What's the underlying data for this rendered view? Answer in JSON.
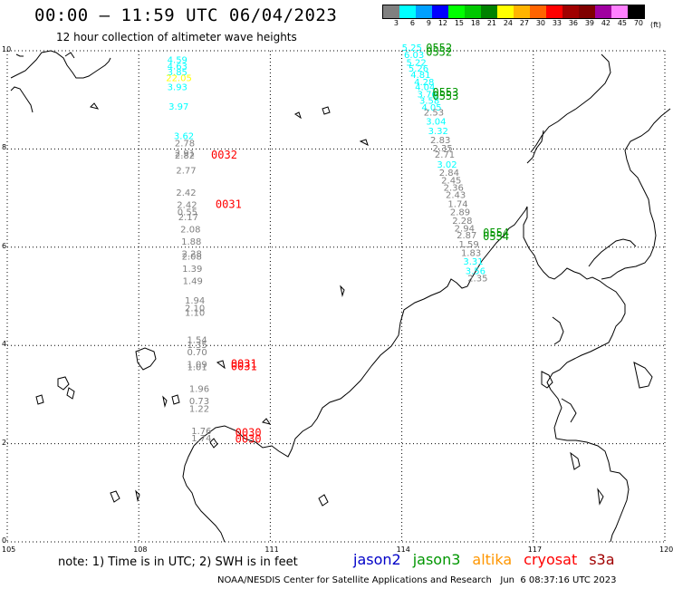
{
  "header": {
    "title": "00:00 – 11:59 UTC 06/04/2023",
    "subtitle": "12 hour collection of altimeter wave heights"
  },
  "legend": {
    "labels": [
      "3",
      "6",
      "9",
      "12",
      "15",
      "18",
      "21",
      "24",
      "27",
      "30",
      "33",
      "36",
      "39",
      "42",
      "45",
      "70"
    ],
    "unit": "(ft)",
    "colors": [
      "#808080",
      "#00ffff",
      "#00a0ff",
      "#0000ff",
      "#00ff00",
      "#00c800",
      "#008200",
      "#ffff00",
      "#ffb400",
      "#ff6400",
      "#ff0000",
      "#a00000",
      "#800000",
      "#a000a0",
      "#ff80ff",
      "#000000"
    ]
  },
  "footer": {
    "note": "note: 1) Time is in UTC; 2) SWH is in feet",
    "satellites": [
      {
        "name": "jason2",
        "color": "#0000c8"
      },
      {
        "name": "jason3",
        "color": "#009600"
      },
      {
        "name": "altika",
        "color": "#ff9600"
      },
      {
        "name": "cryosat",
        "color": "#ff0000"
      },
      {
        "name": "s3a",
        "color": "#a00000"
      }
    ],
    "credit": "NOAA/NESDIS Center for Satellite Applications and Research   Jun  6 08:37:16 UTC 2023"
  },
  "axes": {
    "lon_ticks": [
      "105",
      "108",
      "111",
      "114",
      "117",
      "120"
    ],
    "lat_ticks": [
      "0",
      "2",
      "4",
      "6",
      "8",
      "10"
    ]
  },
  "chart_data": {
    "type": "scatter",
    "description_units": "lon/lat degrees; value = significant wave height (ft)",
    "xlim": [
      105,
      120
    ],
    "ylim": [
      0,
      10
    ],
    "grid": true,
    "tracks": [
      {
        "points": [
          {
            "lon": 108.65,
            "lat": 9.75,
            "v": "4.59",
            "c": "#00ffff"
          },
          {
            "lon": 108.65,
            "lat": 9.62,
            "v": "4.63",
            "c": "#00ffff"
          },
          {
            "lon": 108.65,
            "lat": 9.5,
            "v": "3.85",
            "c": "#00ffff"
          },
          {
            "lon": 108.62,
            "lat": 9.38,
            "v": "22.05",
            "c": "#ffff00"
          },
          {
            "lon": 108.65,
            "lat": 9.2,
            "v": "3.93",
            "c": "#00ffff"
          },
          {
            "lon": 108.68,
            "lat": 8.8,
            "v": "3.97",
            "c": "#00ffff"
          },
          {
            "lon": 108.8,
            "lat": 8.2,
            "v": "3.62",
            "c": "#00ffff"
          },
          {
            "lon": 108.82,
            "lat": 8.05,
            "v": "2.78",
            "c": "#808080"
          },
          {
            "lon": 108.82,
            "lat": 7.85,
            "v": "2.91",
            "c": "#808080"
          },
          {
            "lon": 108.82,
            "lat": 7.8,
            "v": "2.82",
            "c": "#808080"
          },
          {
            "lon": 108.85,
            "lat": 7.5,
            "v": "2.77",
            "c": "#808080"
          },
          {
            "lon": 108.85,
            "lat": 7.05,
            "v": "2.42",
            "c": "#808080"
          },
          {
            "lon": 108.87,
            "lat": 6.8,
            "v": "2.42",
            "c": "#808080"
          },
          {
            "lon": 108.88,
            "lat": 6.65,
            "v": "0.55",
            "c": "#808080"
          },
          {
            "lon": 108.9,
            "lat": 6.55,
            "v": "2.17",
            "c": "#808080"
          },
          {
            "lon": 108.95,
            "lat": 6.3,
            "v": "2.08",
            "c": "#808080"
          },
          {
            "lon": 108.97,
            "lat": 6.05,
            "v": "1.88",
            "c": "#808080"
          },
          {
            "lon": 108.98,
            "lat": 5.8,
            "v": "2.28",
            "c": "#808080"
          },
          {
            "lon": 108.98,
            "lat": 5.75,
            "v": "2.08",
            "c": "#808080"
          },
          {
            "lon": 108.99,
            "lat": 5.5,
            "v": "1.39",
            "c": "#808080"
          },
          {
            "lon": 109.0,
            "lat": 5.25,
            "v": "1.49",
            "c": "#808080"
          },
          {
            "lon": 109.05,
            "lat": 4.85,
            "v": "1.94",
            "c": "#808080"
          },
          {
            "lon": 109.05,
            "lat": 4.7,
            "v": "2.10",
            "c": "#808080"
          },
          {
            "lon": 109.05,
            "lat": 4.6,
            "v": "1.10",
            "c": "#808080"
          },
          {
            "lon": 109.1,
            "lat": 4.05,
            "v": "1.54",
            "c": "#808080"
          },
          {
            "lon": 109.1,
            "lat": 3.95,
            "v": "1.35",
            "c": "#808080"
          },
          {
            "lon": 109.1,
            "lat": 3.8,
            "v": "0.70",
            "c": "#808080"
          },
          {
            "lon": 109.1,
            "lat": 3.55,
            "v": "1.09",
            "c": "#808080"
          },
          {
            "lon": 109.1,
            "lat": 3.5,
            "v": "1.01",
            "c": "#808080"
          },
          {
            "lon": 109.15,
            "lat": 3.05,
            "v": "1.96",
            "c": "#808080"
          },
          {
            "lon": 109.15,
            "lat": 2.8,
            "v": "0.73",
            "c": "#808080"
          },
          {
            "lon": 109.15,
            "lat": 2.65,
            "v": "1.22",
            "c": "#808080"
          },
          {
            "lon": 109.2,
            "lat": 2.2,
            "v": "1.76",
            "c": "#808080"
          },
          {
            "lon": 109.2,
            "lat": 2.05,
            "v": "1.74",
            "c": "#808080"
          }
        ],
        "time_labels": [
          {
            "lon": 109.65,
            "lat": 7.8,
            "t": "0032",
            "c": "#ff0000"
          },
          {
            "lon": 109.75,
            "lat": 6.8,
            "t": "0031",
            "c": "#ff0000"
          },
          {
            "lon": 110.1,
            "lat": 3.55,
            "t": "0031",
            "c": "#ff0000"
          },
          {
            "lon": 110.1,
            "lat": 3.5,
            "t": "0031",
            "c": "#ff0000"
          },
          {
            "lon": 110.2,
            "lat": 2.15,
            "t": "0030",
            "c": "#ff0000"
          },
          {
            "lon": 110.2,
            "lat": 2.02,
            "t": "0030",
            "c": "#ff0000"
          }
        ]
      },
      {
        "points": [
          {
            "lon": 114.0,
            "lat": 10.0,
            "v": "5.25",
            "c": "#00ffff"
          },
          {
            "lon": 114.05,
            "lat": 9.85,
            "v": "6.03",
            "c": "#00ffff"
          },
          {
            "lon": 114.1,
            "lat": 9.7,
            "v": "5.22",
            "c": "#00ffff"
          },
          {
            "lon": 114.15,
            "lat": 9.58,
            "v": "5.26",
            "c": "#00ffff"
          },
          {
            "lon": 114.2,
            "lat": 9.45,
            "v": "4.81",
            "c": "#00ffff"
          },
          {
            "lon": 114.28,
            "lat": 9.3,
            "v": "4.28",
            "c": "#00ffff"
          },
          {
            "lon": 114.3,
            "lat": 9.2,
            "v": "4.04",
            "c": "#00ffff"
          },
          {
            "lon": 114.35,
            "lat": 9.05,
            "v": "3.76",
            "c": "#00ffff"
          },
          {
            "lon": 114.4,
            "lat": 8.92,
            "v": "3.58",
            "c": "#00ffff"
          },
          {
            "lon": 114.45,
            "lat": 8.78,
            "v": "4.05",
            "c": "#00ffff"
          },
          {
            "lon": 114.5,
            "lat": 8.68,
            "v": "2.53",
            "c": "#808080"
          },
          {
            "lon": 114.55,
            "lat": 8.5,
            "v": "3.04",
            "c": "#00ffff"
          },
          {
            "lon": 114.6,
            "lat": 8.3,
            "v": "3.32",
            "c": "#00ffff"
          },
          {
            "lon": 114.65,
            "lat": 8.12,
            "v": "2.83",
            "c": "#808080"
          },
          {
            "lon": 114.7,
            "lat": 7.95,
            "v": "2.35",
            "c": "#808080"
          },
          {
            "lon": 114.75,
            "lat": 7.82,
            "v": "2.71",
            "c": "#808080"
          },
          {
            "lon": 114.8,
            "lat": 7.62,
            "v": "3.02",
            "c": "#00ffff"
          },
          {
            "lon": 114.85,
            "lat": 7.45,
            "v": "2.84",
            "c": "#808080"
          },
          {
            "lon": 114.9,
            "lat": 7.3,
            "v": "2.45",
            "c": "#808080"
          },
          {
            "lon": 114.95,
            "lat": 7.15,
            "v": "2.36",
            "c": "#808080"
          },
          {
            "lon": 115.0,
            "lat": 7.0,
            "v": "2.43",
            "c": "#808080"
          },
          {
            "lon": 115.05,
            "lat": 6.82,
            "v": "1.74",
            "c": "#808080"
          },
          {
            "lon": 115.1,
            "lat": 6.65,
            "v": "2.89",
            "c": "#808080"
          },
          {
            "lon": 115.15,
            "lat": 6.48,
            "v": "2.28",
            "c": "#808080"
          },
          {
            "lon": 115.2,
            "lat": 6.32,
            "v": "2.94",
            "c": "#808080"
          },
          {
            "lon": 115.25,
            "lat": 6.18,
            "v": "2.87",
            "c": "#808080"
          },
          {
            "lon": 115.3,
            "lat": 6.0,
            "v": "1.59",
            "c": "#808080"
          },
          {
            "lon": 115.35,
            "lat": 5.82,
            "v": "1.83",
            "c": "#808080"
          },
          {
            "lon": 115.4,
            "lat": 5.65,
            "v": "3.31",
            "c": "#00ffff"
          },
          {
            "lon": 115.45,
            "lat": 5.45,
            "v": "3.56",
            "c": "#00ffff"
          },
          {
            "lon": 115.5,
            "lat": 5.3,
            "v": "2.35",
            "c": "#808080"
          }
        ],
        "time_labels": [
          {
            "lon": 114.55,
            "lat": 9.98,
            "t": "0552",
            "c": "#009600"
          },
          {
            "lon": 114.55,
            "lat": 9.9,
            "t": "0552",
            "c": "#009600"
          },
          {
            "lon": 114.7,
            "lat": 9.08,
            "t": "0553",
            "c": "#009600"
          },
          {
            "lon": 114.7,
            "lat": 9.0,
            "t": "0553",
            "c": "#009600"
          },
          {
            "lon": 115.85,
            "lat": 6.22,
            "t": "0554",
            "c": "#009600"
          },
          {
            "lon": 115.85,
            "lat": 6.14,
            "t": "0554",
            "c": "#009600"
          }
        ]
      }
    ]
  }
}
